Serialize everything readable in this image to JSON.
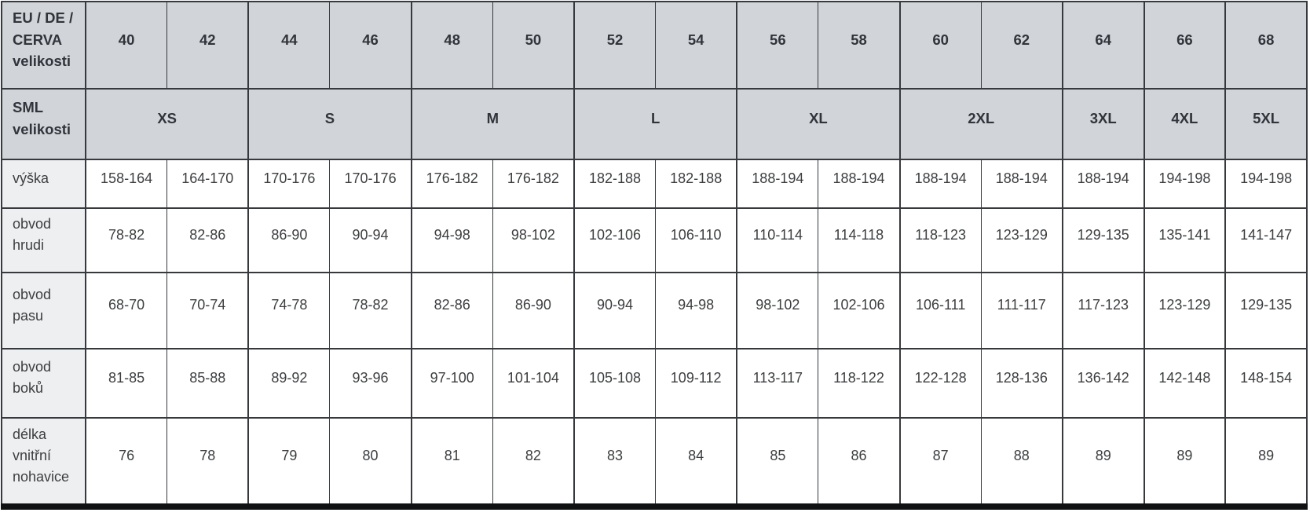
{
  "colors": {
    "header_bg": "#d1d4d9",
    "row_label_bg": "#edeff1",
    "data_cell_bg": "#ffffff",
    "grid_border": "#36393d",
    "bottom_bar": "#0f1113",
    "header_text": "#31343a",
    "body_text": "#3c3e40"
  },
  "table": {
    "header_rows": [
      {
        "key": "eu-de-cerva",
        "label": "EU / DE /\nCERVA\nvelikosti",
        "cells": [
          "40",
          "42",
          "44",
          "46",
          "48",
          "50",
          "52",
          "54",
          "56",
          "58",
          "60",
          "62",
          "64",
          "66",
          "68"
        ]
      },
      {
        "key": "sml",
        "label": "SML\nvelikosti",
        "groups": [
          {
            "label": "XS",
            "span": 2
          },
          {
            "label": "S",
            "span": 2
          },
          {
            "label": "M",
            "span": 2
          },
          {
            "label": "L",
            "span": 2
          },
          {
            "label": "XL",
            "span": 2
          },
          {
            "label": "2XL",
            "span": 2
          },
          {
            "label": "3XL",
            "span": 1
          },
          {
            "label": "4XL",
            "span": 1
          },
          {
            "label": "5XL",
            "span": 1
          }
        ]
      }
    ],
    "rows": [
      {
        "key": "vyska",
        "label": "výška",
        "values": [
          "158-164",
          "164-170",
          "170-176",
          "170-176",
          "176-182",
          "176-182",
          "182-188",
          "182-188",
          "188-194",
          "188-194",
          "188-194",
          "188-194",
          "188-194",
          "194-198",
          "194-198"
        ]
      },
      {
        "key": "obvod-hrudi",
        "label": "obvod\nhrudi",
        "values": [
          "78-82",
          "82-86",
          "86-90",
          "90-94",
          "94-98",
          "98-102",
          "102-106",
          "106-110",
          "110-114",
          "114-118",
          "118-123",
          "123-129",
          "129-135",
          "135-141",
          "141-147"
        ]
      },
      {
        "key": "obvod-pasu",
        "label": "obvod\npasu",
        "values": [
          "68-70",
          "70-74",
          "74-78",
          "78-82",
          "82-86",
          "86-90",
          "90-94",
          "94-98",
          "98-102",
          "102-106",
          "106-111",
          "111-117",
          "117-123",
          "123-129",
          "129-135"
        ]
      },
      {
        "key": "obvod-boku",
        "label": "obvod\nboků",
        "values": [
          "81-85",
          "85-88",
          "89-92",
          "93-96",
          "97-100",
          "101-104",
          "105-108",
          "109-112",
          "113-117",
          "118-122",
          "122-128",
          "128-136",
          "136-142",
          "142-148",
          "148-154"
        ]
      },
      {
        "key": "delka-vnitrni-nohavice",
        "label": "délka\nvnitřní\nnohavice",
        "values": [
          "76",
          "78",
          "79",
          "80",
          "81",
          "82",
          "83",
          "84",
          "85",
          "86",
          "87",
          "88",
          "89",
          "89",
          "89"
        ]
      }
    ],
    "group_start_column_indexes": [
      0,
      2,
      4,
      6,
      8,
      10,
      12,
      13,
      14
    ]
  },
  "chart_data": {
    "type": "table",
    "columns": [
      "EU / DE / CERVA velikosti",
      "40",
      "42",
      "44",
      "46",
      "48",
      "50",
      "52",
      "54",
      "56",
      "58",
      "60",
      "62",
      "64",
      "66",
      "68"
    ],
    "rows": [
      [
        "SML velikosti",
        "XS",
        "XS",
        "S",
        "S",
        "M",
        "M",
        "L",
        "L",
        "XL",
        "XL",
        "2XL",
        "2XL",
        "3XL",
        "4XL",
        "5XL"
      ],
      [
        "výška",
        "158-164",
        "164-170",
        "170-176",
        "170-176",
        "176-182",
        "176-182",
        "182-188",
        "182-188",
        "188-194",
        "188-194",
        "188-194",
        "188-194",
        "188-194",
        "194-198",
        "194-198"
      ],
      [
        "obvod hrudi",
        "78-82",
        "82-86",
        "86-90",
        "90-94",
        "94-98",
        "98-102",
        "102-106",
        "106-110",
        "110-114",
        "114-118",
        "118-123",
        "123-129",
        "129-135",
        "135-141",
        "141-147"
      ],
      [
        "obvod pasu",
        "68-70",
        "70-74",
        "74-78",
        "78-82",
        "82-86",
        "86-90",
        "90-94",
        "94-98",
        "98-102",
        "102-106",
        "106-111",
        "111-117",
        "117-123",
        "123-129",
        "129-135"
      ],
      [
        "obvod boků",
        "81-85",
        "85-88",
        "89-92",
        "93-96",
        "97-100",
        "101-104",
        "105-108",
        "109-112",
        "113-117",
        "118-122",
        "122-128",
        "128-136",
        "136-142",
        "142-148",
        "148-154"
      ],
      [
        "délka vnitřní nohavice",
        "76",
        "78",
        "79",
        "80",
        "81",
        "82",
        "83",
        "84",
        "85",
        "86",
        "87",
        "88",
        "89",
        "89",
        "89"
      ]
    ]
  }
}
